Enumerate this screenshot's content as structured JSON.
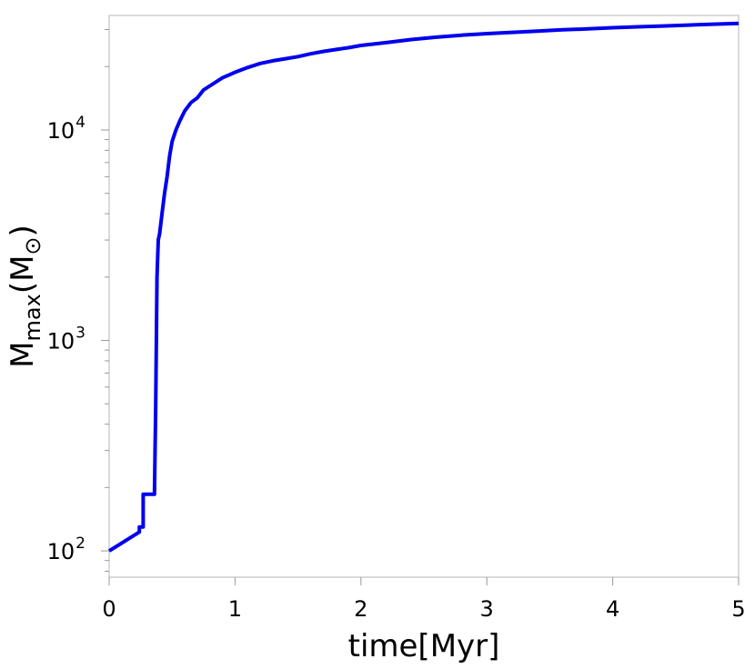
{
  "chart_data": {
    "type": "line",
    "xlabel": "time[Myr]",
    "ylabel": {
      "main": "M",
      "sub": "max",
      "unit_main": "M",
      "unit_symbol": "⊙"
    },
    "xlim": [
      0,
      5
    ],
    "ylim": [
      75,
      35000
    ],
    "yscale": "log",
    "grid": false,
    "x_ticks": [
      {
        "value": 0,
        "label": "0"
      },
      {
        "value": 1,
        "label": "1"
      },
      {
        "value": 2,
        "label": "2"
      },
      {
        "value": 3,
        "label": "3"
      },
      {
        "value": 4,
        "label": "4"
      },
      {
        "value": 5,
        "label": "5"
      }
    ],
    "y_ticks": [
      {
        "value": 100,
        "base": "10",
        "exp": "2"
      },
      {
        "value": 1000,
        "base": "10",
        "exp": "3"
      },
      {
        "value": 10000,
        "base": "10",
        "exp": "4"
      }
    ],
    "series": [
      {
        "color": "#0000ee",
        "x": [
          0.0,
          0.24,
          0.24,
          0.27,
          0.27,
          0.36,
          0.37,
          0.38,
          0.39,
          0.4,
          0.42,
          0.44,
          0.46,
          0.48,
          0.5,
          0.53,
          0.56,
          0.6,
          0.65,
          0.7,
          0.75,
          0.8,
          0.9,
          1.0,
          1.1,
          1.2,
          1.3,
          1.4,
          1.5,
          1.6,
          1.7,
          1.8,
          1.9,
          2.0,
          2.2,
          2.4,
          2.6,
          2.8,
          3.0,
          3.2,
          3.4,
          3.6,
          3.8,
          4.0,
          4.2,
          4.4,
          4.6,
          4.8,
          5.0
        ],
        "y": [
          100,
          123,
          130,
          130,
          186,
          186,
          500,
          2000,
          3000,
          3200,
          4000,
          5000,
          6000,
          7500,
          8800,
          10000,
          11000,
          12300,
          13500,
          14200,
          15500,
          16200,
          17700,
          18800,
          19800,
          20700,
          21300,
          21800,
          22300,
          23000,
          23600,
          24100,
          24600,
          25200,
          26000,
          26900,
          27600,
          28200,
          28700,
          29100,
          29500,
          29900,
          30200,
          30600,
          30900,
          31200,
          31500,
          31800,
          32100
        ]
      }
    ]
  }
}
